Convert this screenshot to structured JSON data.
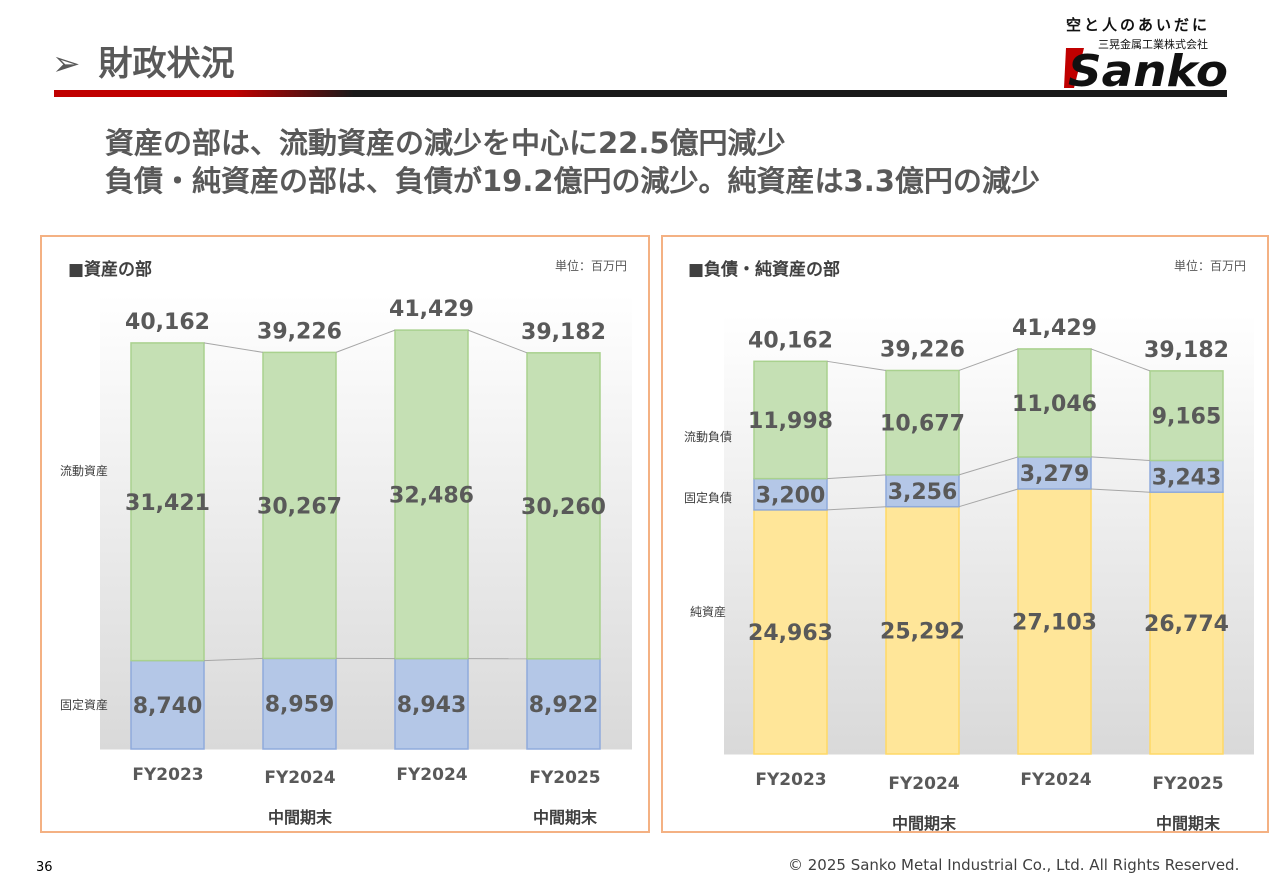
{
  "slide": {
    "title": "財政状況",
    "title_arrow": "➢",
    "headline1": "資産の部は、流動資産の減少を中心に22.5億円減少",
    "headline2": "負債・純資産の部は、負債が19.2億円の減少。純資産は3.3億円の減少",
    "page_number": "36",
    "copyright": "© 2025 Sanko Metal Industrial Co., Ltd. All Rights Reserved."
  },
  "logo": {
    "tagline": "空と人のあいだに",
    "company_jp": "三晃金属工業株式会社",
    "wordmark": "Sanko"
  },
  "colors": {
    "accent": "#c00000",
    "panel_border": "#f4b183",
    "current": "#c5e0b4",
    "fixed": "#b4c7e7",
    "net": "#ffe699",
    "label_current": "#f4b183",
    "label_fixed": "#f8cbad",
    "label_net": "#fbe5d6"
  },
  "chart_data": [
    {
      "type": "bar",
      "stacked": true,
      "title": "■資産の部",
      "unit": "単位：百万円",
      "categories": [
        "FY2023",
        "FY2024",
        "FY2024",
        "FY2025"
      ],
      "category_sub": [
        "",
        "中間期末",
        "",
        "中間期末"
      ],
      "series": [
        {
          "name": "固定資産",
          "values": [
            8740,
            8959,
            8943,
            8922
          ]
        },
        {
          "name": "流動資産",
          "values": [
            31421,
            30267,
            32486,
            30260
          ]
        }
      ],
      "totals": [
        40162,
        39226,
        41429,
        39182
      ],
      "ylim": [
        0,
        45000
      ]
    },
    {
      "type": "bar",
      "stacked": true,
      "title": "■負債・純資産の部",
      "unit": "単位：百万円",
      "categories": [
        "FY2023",
        "FY2024",
        "FY2024",
        "FY2025"
      ],
      "category_sub": [
        "",
        "中間期末",
        "",
        "中間期末"
      ],
      "series": [
        {
          "name": "純資産",
          "values": [
            24963,
            25292,
            27103,
            26774
          ]
        },
        {
          "name": "固定負債",
          "values": [
            3200,
            3256,
            3279,
            3243
          ]
        },
        {
          "name": "流動負債",
          "values": [
            11998,
            10677,
            11046,
            9165
          ]
        }
      ],
      "totals": [
        40162,
        39226,
        41429,
        39182
      ],
      "ylim": [
        0,
        45000
      ]
    }
  ]
}
